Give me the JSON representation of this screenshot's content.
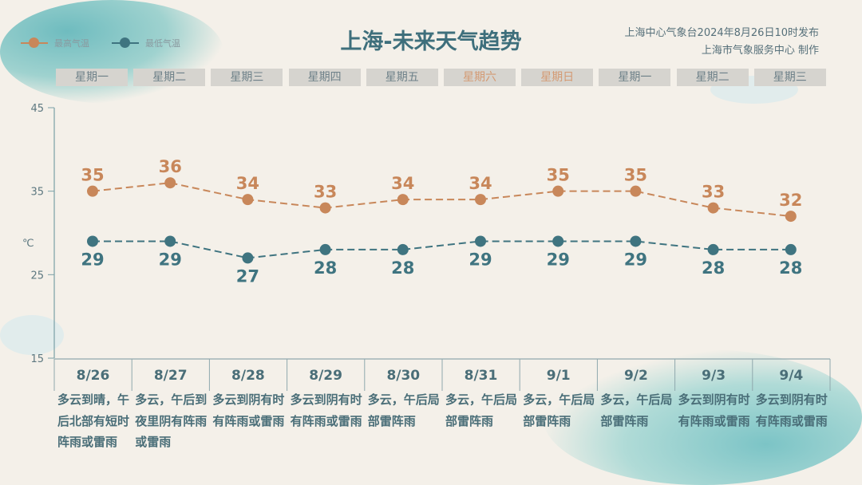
{
  "title": "上海-未来天气趋势",
  "publisher": {
    "line1": "上海中心气象台2024年8月26日10时发布",
    "line2": "上海市气象服务中心 制作"
  },
  "colors": {
    "high": "#c8875a",
    "low": "#3f7480",
    "weekend": "#d49a73"
  },
  "chart_data": {
    "type": "line",
    "ylim": [
      15,
      45
    ],
    "yticks": [
      "15",
      "25",
      "35",
      "45"
    ],
    "yunit": "℃",
    "categories": [
      "8/26",
      "8/27",
      "8/28",
      "8/29",
      "8/30",
      "8/31",
      "9/1",
      "9/2",
      "9/3",
      "9/4"
    ],
    "weekdays": [
      "星期一",
      "星期二",
      "星期三",
      "星期四",
      "星期五",
      "星期六",
      "星期日",
      "星期一",
      "星期二",
      "星期三"
    ],
    "weekend": [
      false,
      false,
      false,
      false,
      false,
      true,
      true,
      false,
      false,
      false
    ],
    "series": [
      {
        "name": "最高气温",
        "values": [
          35,
          36,
          34,
          33,
          34,
          34,
          35,
          35,
          33,
          32
        ]
      },
      {
        "name": "最低气温",
        "values": [
          29,
          29,
          27,
          28,
          28,
          29,
          29,
          29,
          28,
          28
        ]
      }
    ],
    "descriptions": [
      "多云到晴，午后北部有短时阵雨或雷雨",
      "多云，午后到夜里阴有阵雨或雷雨",
      "多云到阴有时有阵雨或雷雨",
      "多云到阴有时有阵雨或雷雨",
      "多云，午后局部雷阵雨",
      "多云，午后局部雷阵雨",
      "多云，午后局部雷阵雨",
      "多云，午后局部雷阵雨",
      "多云到阴有时有阵雨或雷雨",
      "多云到阴有时有阵雨或雷雨"
    ]
  }
}
